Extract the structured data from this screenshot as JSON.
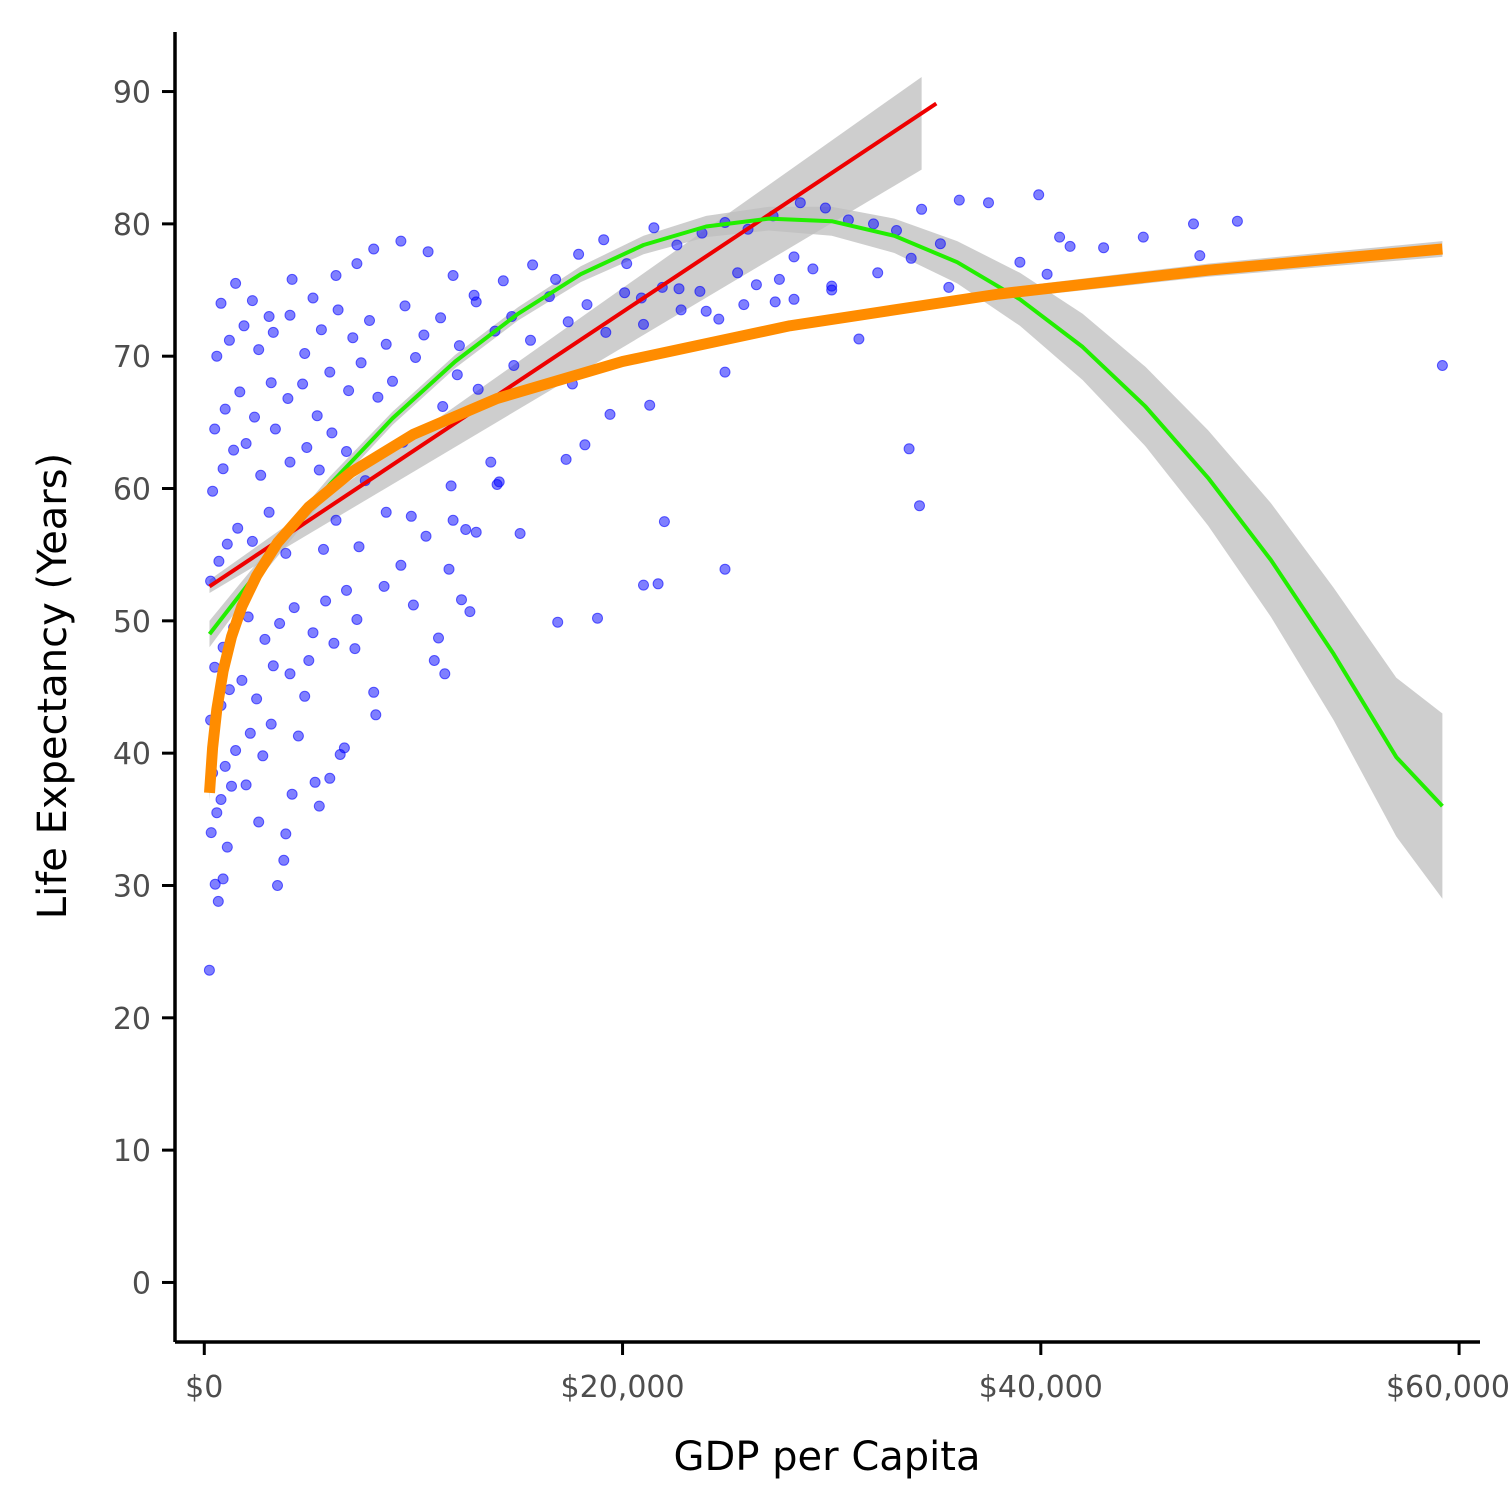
{
  "chart_data": {
    "type": "scatter",
    "title": "",
    "xlabel": "GDP per Capita",
    "ylabel": "Life Expectancy (Years)",
    "xlim": [
      -1400,
      61000
    ],
    "ylim": [
      -4.5,
      94.5
    ],
    "x_ticks": [
      {
        "value": 0,
        "label": "$0"
      },
      {
        "value": 20000,
        "label": "$20,000"
      },
      {
        "value": 40000,
        "label": "$40,000"
      },
      {
        "value": 60000,
        "label": "$60,000"
      }
    ],
    "y_ticks": [
      {
        "value": 0,
        "label": "0"
      },
      {
        "value": 10,
        "label": "10"
      },
      {
        "value": 20,
        "label": "20"
      },
      {
        "value": 30,
        "label": "30"
      },
      {
        "value": 40,
        "label": "40"
      },
      {
        "value": 50,
        "label": "50"
      },
      {
        "value": 60,
        "label": "60"
      },
      {
        "value": 70,
        "label": "70"
      },
      {
        "value": 80,
        "label": "80"
      },
      {
        "value": 90,
        "label": "90"
      }
    ],
    "grid": false,
    "legend": "none",
    "colors": {
      "points": "#0000ff",
      "linear": "#ee0000",
      "quadratic": "#22ee00",
      "log": "#ff8c00",
      "ribbon": "#bebebe",
      "axis": "#000000"
    },
    "scatter_points": [
      [
        245,
        23.6
      ],
      [
        670,
        28.8
      ],
      [
        520,
        30.1
      ],
      [
        900,
        30.5
      ],
      [
        1100,
        32.9
      ],
      [
        3500,
        30.0
      ],
      [
        3800,
        31.9
      ],
      [
        330,
        34.0
      ],
      [
        600,
        35.5
      ],
      [
        800,
        36.5
      ],
      [
        1300,
        37.5
      ],
      [
        2000,
        37.6
      ],
      [
        2600,
        34.8
      ],
      [
        3900,
        33.9
      ],
      [
        5500,
        36.0
      ],
      [
        4200,
        36.9
      ],
      [
        5300,
        37.8
      ],
      [
        6000,
        38.1
      ],
      [
        6500,
        39.9
      ],
      [
        6700,
        40.4
      ],
      [
        400,
        38.5
      ],
      [
        1000,
        39.0
      ],
      [
        1500,
        40.2
      ],
      [
        2200,
        41.5
      ],
      [
        2800,
        39.8
      ],
      [
        3200,
        42.2
      ],
      [
        4500,
        41.3
      ],
      [
        300,
        42.5
      ],
      [
        800,
        43.6
      ],
      [
        1200,
        44.8
      ],
      [
        1800,
        45.5
      ],
      [
        2500,
        44.1
      ],
      [
        3300,
        46.6
      ],
      [
        4100,
        46.0
      ],
      [
        5000,
        47.0
      ],
      [
        4800,
        44.3
      ],
      [
        5200,
        49.1
      ],
      [
        6200,
        48.3
      ],
      [
        7200,
        47.9
      ],
      [
        8100,
        44.6
      ],
      [
        8200,
        42.9
      ],
      [
        500,
        46.5
      ],
      [
        900,
        48.0
      ],
      [
        1400,
        49.5
      ],
      [
        2100,
        50.3
      ],
      [
        2900,
        48.6
      ],
      [
        3600,
        49.8
      ],
      [
        4300,
        51.0
      ],
      [
        5800,
        51.5
      ],
      [
        6800,
        52.3
      ],
      [
        7300,
        50.1
      ],
      [
        8600,
        52.6
      ],
      [
        9400,
        54.2
      ],
      [
        10000,
        51.2
      ],
      [
        11000,
        47.0
      ],
      [
        11500,
        46.0
      ],
      [
        11200,
        48.7
      ],
      [
        12300,
        51.6
      ],
      [
        12700,
        50.7
      ],
      [
        11700,
        53.9
      ],
      [
        300,
        53.0
      ],
      [
        700,
        54.5
      ],
      [
        1100,
        55.8
      ],
      [
        1600,
        57.0
      ],
      [
        2300,
        56.0
      ],
      [
        3100,
        58.2
      ],
      [
        3900,
        55.1
      ],
      [
        5700,
        55.4
      ],
      [
        6300,
        57.6
      ],
      [
        7400,
        55.6
      ],
      [
        8700,
        58.2
      ],
      [
        9900,
        57.9
      ],
      [
        10600,
        56.4
      ],
      [
        11900,
        57.6
      ],
      [
        12500,
        56.9
      ],
      [
        13000,
        56.7
      ],
      [
        14100,
        60.5
      ],
      [
        15100,
        56.6
      ],
      [
        16900,
        49.9
      ],
      [
        18800,
        50.2
      ],
      [
        21000,
        52.7
      ],
      [
        21700,
        52.8
      ],
      [
        24900,
        53.9
      ],
      [
        400,
        59.8
      ],
      [
        900,
        61.5
      ],
      [
        1400,
        62.9
      ],
      [
        2000,
        63.4
      ],
      [
        2700,
        61.0
      ],
      [
        3400,
        64.5
      ],
      [
        4100,
        62.0
      ],
      [
        4900,
        63.1
      ],
      [
        5500,
        61.4
      ],
      [
        6100,
        64.2
      ],
      [
        6800,
        62.8
      ],
      [
        7700,
        60.6
      ],
      [
        9500,
        63.5
      ],
      [
        11800,
        60.2
      ],
      [
        13700,
        62.0
      ],
      [
        14000,
        60.3
      ],
      [
        17300,
        62.2
      ],
      [
        18200,
        63.3
      ],
      [
        22000,
        57.5
      ],
      [
        33700,
        63.0
      ],
      [
        34200,
        58.7
      ],
      [
        500,
        64.5
      ],
      [
        1000,
        66.0
      ],
      [
        1700,
        67.3
      ],
      [
        2400,
        65.4
      ],
      [
        3200,
        68.0
      ],
      [
        4000,
        66.8
      ],
      [
        4700,
        67.9
      ],
      [
        5400,
        65.5
      ],
      [
        6000,
        68.8
      ],
      [
        6900,
        67.4
      ],
      [
        7500,
        69.5
      ],
      [
        8300,
        66.9
      ],
      [
        9000,
        68.1
      ],
      [
        10100,
        69.9
      ],
      [
        11400,
        66.2
      ],
      [
        12100,
        68.6
      ],
      [
        13100,
        67.5
      ],
      [
        14800,
        69.3
      ],
      [
        17600,
        67.9
      ],
      [
        19400,
        65.6
      ],
      [
        21300,
        66.3
      ],
      [
        24900,
        68.8
      ],
      [
        600,
        70.0
      ],
      [
        1200,
        71.2
      ],
      [
        1900,
        72.3
      ],
      [
        2600,
        70.5
      ],
      [
        3300,
        71.8
      ],
      [
        4100,
        73.1
      ],
      [
        4800,
        70.2
      ],
      [
        5600,
        72.0
      ],
      [
        6400,
        73.5
      ],
      [
        7100,
        71.4
      ],
      [
        7900,
        72.7
      ],
      [
        8700,
        70.9
      ],
      [
        9600,
        73.8
      ],
      [
        10500,
        71.6
      ],
      [
        11300,
        72.9
      ],
      [
        12200,
        70.8
      ],
      [
        13000,
        74.1
      ],
      [
        13900,
        71.9
      ],
      [
        14700,
        73.0
      ],
      [
        15600,
        71.2
      ],
      [
        16500,
        74.5
      ],
      [
        17400,
        72.6
      ],
      [
        18300,
        73.9
      ],
      [
        19200,
        71.8
      ],
      [
        20100,
        74.8
      ],
      [
        21000,
        72.4
      ],
      [
        21900,
        75.2
      ],
      [
        22800,
        73.5
      ],
      [
        23700,
        74.9
      ],
      [
        24600,
        72.8
      ],
      [
        25500,
        76.3
      ],
      [
        26400,
        75.4
      ],
      [
        27300,
        74.1
      ],
      [
        28200,
        77.5
      ],
      [
        29100,
        76.6
      ],
      [
        30000,
        75.0
      ],
      [
        31300,
        71.3
      ],
      [
        800,
        74.0
      ],
      [
        1500,
        75.5
      ],
      [
        2300,
        74.2
      ],
      [
        3100,
        73.0
      ],
      [
        4200,
        75.8
      ],
      [
        5200,
        74.4
      ],
      [
        6300,
        76.1
      ],
      [
        7300,
        77.0
      ],
      [
        8100,
        78.1
      ],
      [
        9400,
        78.7
      ],
      [
        10700,
        77.9
      ],
      [
        11900,
        76.1
      ],
      [
        12900,
        74.6
      ],
      [
        14300,
        75.7
      ],
      [
        15700,
        76.9
      ],
      [
        16800,
        75.8
      ],
      [
        17900,
        77.7
      ],
      [
        19100,
        78.8
      ],
      [
        20200,
        77.0
      ],
      [
        21500,
        79.7
      ],
      [
        22600,
        78.4
      ],
      [
        23800,
        79.3
      ],
      [
        24900,
        80.1
      ],
      [
        26000,
        79.6
      ],
      [
        27200,
        80.6
      ],
      [
        28500,
        81.6
      ],
      [
        29700,
        81.2
      ],
      [
        30800,
        80.3
      ],
      [
        32000,
        80.0
      ],
      [
        33100,
        79.5
      ],
      [
        34300,
        81.1
      ],
      [
        35200,
        78.5
      ],
      [
        36100,
        81.8
      ],
      [
        37500,
        81.6
      ],
      [
        39000,
        77.1
      ],
      [
        39900,
        82.2
      ],
      [
        40900,
        79.0
      ],
      [
        41400,
        78.3
      ],
      [
        43000,
        78.2
      ],
      [
        44900,
        79.0
      ],
      [
        47300,
        80.0
      ],
      [
        47600,
        77.6
      ],
      [
        49400,
        80.2
      ],
      [
        59200,
        69.3
      ],
      [
        40300,
        76.2
      ],
      [
        35600,
        75.2
      ],
      [
        33800,
        77.4
      ],
      [
        32200,
        76.3
      ],
      [
        30000,
        75.3
      ],
      [
        28200,
        74.3
      ],
      [
        27500,
        75.8
      ],
      [
        25800,
        73.9
      ],
      [
        24000,
        73.4
      ],
      [
        22700,
        75.1
      ],
      [
        20900,
        74.4
      ]
    ],
    "fits": {
      "linear": {
        "x": [
          250,
          35000
        ],
        "y": [
          52.6,
          89.1
        ]
      },
      "quadratic": {
        "x": [
          250,
          3000,
          6000,
          9000,
          12000,
          15000,
          18000,
          21000,
          24000,
          27000,
          30000,
          33000,
          36000,
          39000,
          42000,
          45000,
          48000,
          51000,
          54000,
          57000,
          59200
        ],
        "y": [
          49.0,
          54.6,
          60.3,
          65.3,
          69.6,
          73.2,
          76.2,
          78.4,
          79.8,
          80.4,
          80.2,
          79.1,
          77.1,
          74.3,
          70.7,
          66.2,
          60.8,
          54.6,
          47.5,
          39.7,
          36.0
        ],
        "ribbon_half_width": [
          1.0,
          0.7,
          0.6,
          0.5,
          0.5,
          0.5,
          0.6,
          0.7,
          0.8,
          0.9,
          1.1,
          1.3,
          1.6,
          2.0,
          2.5,
          3.0,
          3.6,
          4.3,
          5.0,
          6.0,
          7.0
        ]
      },
      "log": {
        "x": [
          250,
          400,
          600,
          900,
          1300,
          1800,
          2500,
          3500,
          5000,
          7000,
          10000,
          14000,
          20000,
          28000,
          38000,
          48000,
          59200
        ],
        "y": [
          37.0,
          40.4,
          43.3,
          46.2,
          48.8,
          51.1,
          53.4,
          55.9,
          58.6,
          61.2,
          64.1,
          66.8,
          69.6,
          72.3,
          74.7,
          76.5,
          78.1
        ],
        "ribbon_half_width": [
          0.6,
          0.5,
          0.4,
          0.3,
          0.3,
          0.25,
          0.2,
          0.2,
          0.2,
          0.2,
          0.2,
          0.2,
          0.25,
          0.3,
          0.4,
          0.5,
          0.6
        ]
      }
    }
  }
}
